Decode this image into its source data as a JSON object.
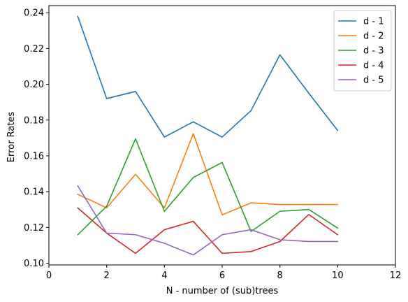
{
  "chart_data": {
    "type": "line",
    "title": "",
    "xlabel": "N - number of (sub)trees",
    "ylabel": "Error Rates",
    "xlim": [
      0,
      12
    ],
    "ylim": [
      0.099,
      0.244
    ],
    "xticks": [
      0,
      2,
      4,
      6,
      8,
      10,
      12
    ],
    "yticks": [
      0.1,
      0.12,
      0.14,
      0.16,
      0.18,
      0.2,
      0.22,
      0.24
    ],
    "ytick_labels": [
      "0.10",
      "0.12",
      "0.14",
      "0.16",
      "0.18",
      "0.20",
      "0.22",
      "0.24"
    ],
    "grid": false,
    "legend_position": "top-right",
    "x": [
      1,
      2,
      3,
      4,
      5,
      6,
      7,
      8,
      9,
      10
    ],
    "series": [
      {
        "name": "d - 1",
        "color": "#1f77b4",
        "values": [
          0.238,
          0.192,
          0.196,
          0.1705,
          0.179,
          0.1705,
          0.1853,
          0.2165,
          0.195,
          0.1742
        ]
      },
      {
        "name": "d - 2",
        "color": "#ff7f0e",
        "values": [
          0.1385,
          0.1309,
          0.1497,
          0.1309,
          0.1724,
          0.127,
          0.1337,
          0.1328,
          0.1328,
          0.1328
        ]
      },
      {
        "name": "d - 3",
        "color": "#2ca02c",
        "values": [
          0.1159,
          0.1318,
          0.1695,
          0.129,
          0.1479,
          0.1563,
          0.1177,
          0.129,
          0.13,
          0.1196
        ]
      },
      {
        "name": "d - 4",
        "color": "#d62728",
        "values": [
          0.1309,
          0.1168,
          0.1055,
          0.1187,
          0.1234,
          0.1055,
          0.1065,
          0.1121,
          0.1272,
          0.1159
        ]
      },
      {
        "name": "d - 5",
        "color": "#9467bd",
        "values": [
          0.1432,
          0.1168,
          0.1159,
          0.1111,
          0.1046,
          0.1159,
          0.1187,
          0.1131,
          0.1121,
          0.1121
        ]
      }
    ]
  }
}
